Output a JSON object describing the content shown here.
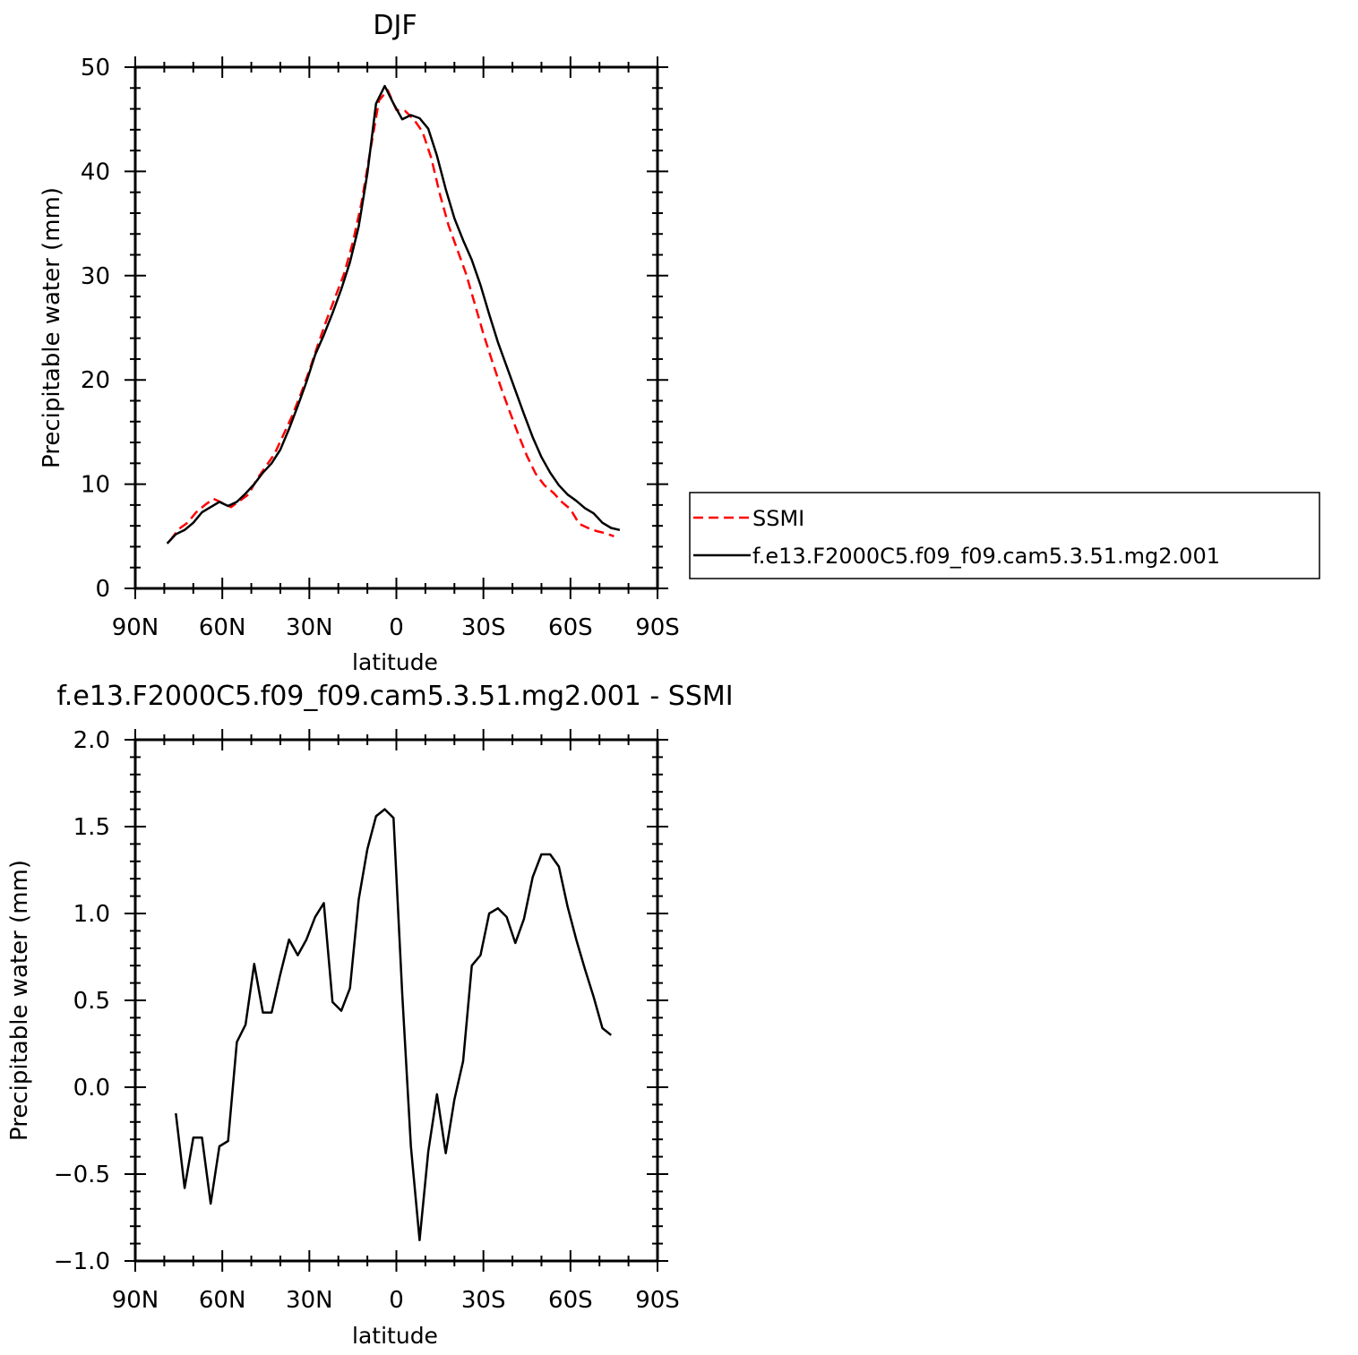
{
  "chart_data": [
    {
      "type": "line",
      "title": "DJF",
      "xlabel": "latitude",
      "ylabel": "Precipitable water (mm)",
      "xlim": [
        -90,
        90
      ],
      "ylim": [
        0,
        50
      ],
      "x_ticks": [
        -90,
        -60,
        -30,
        0,
        30,
        60,
        90
      ],
      "x_tick_labels": [
        "90N",
        "60N",
        "30N",
        "0",
        "30S",
        "60S",
        "90S"
      ],
      "y_ticks": [
        0,
        10,
        20,
        30,
        40,
        50
      ],
      "y_tick_labels": [
        "0",
        "10",
        "20",
        "30",
        "40",
        "50"
      ],
      "legend_position": "right",
      "series": [
        {
          "name": "SSMI",
          "color": "#ff0000",
          "dash": "dashed",
          "x": [
            -78,
            -75,
            -72,
            -69,
            -66,
            -63,
            -60,
            -57,
            -54,
            -51,
            -48,
            -45,
            -42,
            -39,
            -36,
            -33,
            -30,
            -27,
            -24,
            -21,
            -18,
            -15,
            -12,
            -9,
            -6,
            -3,
            0,
            3,
            6,
            9,
            12,
            15,
            18,
            21,
            24,
            27,
            30,
            33,
            36,
            39,
            42,
            45,
            48,
            51,
            54,
            57,
            60,
            63,
            66,
            69,
            72,
            75
          ],
          "y": [
            4.6,
            5.7,
            6.3,
            7.3,
            8.0,
            8.6,
            8.2,
            7.8,
            8.4,
            9.0,
            10.5,
            11.7,
            12.9,
            14.7,
            16.5,
            18.6,
            20.9,
            23.4,
            25.8,
            28.0,
            30.2,
            33.2,
            37.0,
            42.0,
            46.8,
            47.8,
            45.9,
            45.8,
            45.0,
            43.8,
            41.3,
            37.8,
            34.8,
            32.5,
            30.2,
            27.3,
            24.4,
            21.8,
            19.3,
            17.0,
            14.8,
            12.7,
            11.0,
            9.9,
            9.2,
            8.3,
            7.6,
            6.2,
            5.8,
            5.5,
            5.3,
            5.0
          ]
        },
        {
          "name": "f.e13.F2000C5.f09_f09.cam5.3.51.mg2.001",
          "color": "#000000",
          "dash": "solid",
          "x": [
            -79,
            -76,
            -73,
            -70,
            -67,
            -64,
            -61,
            -58,
            -55,
            -52,
            -49,
            -46,
            -43,
            -40,
            -37,
            -34,
            -31,
            -28,
            -25,
            -22,
            -19,
            -16,
            -13,
            -10,
            -7,
            -4,
            -1,
            2,
            5,
            8,
            11,
            14,
            17,
            20,
            23,
            26,
            29,
            32,
            35,
            38,
            41,
            44,
            47,
            50,
            53,
            56,
            59,
            62,
            65,
            68,
            71,
            74,
            77
          ],
          "y": [
            4.3,
            5.2,
            5.6,
            6.3,
            7.3,
            7.8,
            8.3,
            7.9,
            8.3,
            9.1,
            10.0,
            11.1,
            12.0,
            13.3,
            15.3,
            17.5,
            19.8,
            22.4,
            24.3,
            26.4,
            28.7,
            31.3,
            34.7,
            39.8,
            46.5,
            48.2,
            46.5,
            45.0,
            45.4,
            45.1,
            44.1,
            41.5,
            38.3,
            35.5,
            33.4,
            31.5,
            29.1,
            26.3,
            23.6,
            21.3,
            19.0,
            16.7,
            14.5,
            12.6,
            11.1,
            9.9,
            9.0,
            8.4,
            7.7,
            7.2,
            6.3,
            5.8,
            5.6
          ]
        }
      ]
    },
    {
      "type": "line",
      "title": "f.e13.F2000C5.f09_f09.cam5.3.51.mg2.001  -  SSMI",
      "xlabel": "latitude",
      "ylabel": "Precipitable water (mm)",
      "xlim": [
        -90,
        90
      ],
      "ylim": [
        -1.0,
        2.0
      ],
      "x_ticks": [
        -90,
        -60,
        -30,
        0,
        30,
        60,
        90
      ],
      "x_tick_labels": [
        "90N",
        "60N",
        "30N",
        "0",
        "30S",
        "60S",
        "90S"
      ],
      "y_ticks": [
        -1.0,
        -0.5,
        0.0,
        0.5,
        1.0,
        1.5,
        2.0
      ],
      "y_tick_labels": [
        "−1.0",
        "−0.5",
        "0.0",
        "0.5",
        "1.0",
        "1.5",
        "2.0"
      ],
      "series": [
        {
          "color": "#000000",
          "dash": "solid",
          "x": [
            -76,
            -73,
            -70,
            -67,
            -64,
            -61,
            -58,
            -55,
            -52,
            -49,
            -46,
            -43,
            -40,
            -37,
            -34,
            -31,
            -28,
            -25,
            -22,
            -19,
            -16,
            -13,
            -10,
            -7,
            -4,
            -1,
            2,
            5,
            8,
            11,
            14,
            17,
            20,
            23,
            26,
            29,
            32,
            35,
            38,
            41,
            44,
            47,
            50,
            53,
            56,
            59,
            62,
            65,
            68,
            71,
            74
          ],
          "y": [
            -0.15,
            -0.58,
            -0.29,
            -0.29,
            -0.67,
            -0.34,
            -0.31,
            0.26,
            0.36,
            0.71,
            0.43,
            0.43,
            0.65,
            0.85,
            0.76,
            0.85,
            0.98,
            1.06,
            0.49,
            0.44,
            0.57,
            1.08,
            1.37,
            1.56,
            1.6,
            1.55,
            0.54,
            -0.34,
            -0.88,
            -0.37,
            -0.04,
            -0.38,
            -0.07,
            0.15,
            0.7,
            0.76,
            1.0,
            1.03,
            0.98,
            0.83,
            0.97,
            1.21,
            1.34,
            1.34,
            1.27,
            1.04,
            0.85,
            0.68,
            0.52,
            0.34,
            0.3
          ]
        }
      ]
    }
  ]
}
